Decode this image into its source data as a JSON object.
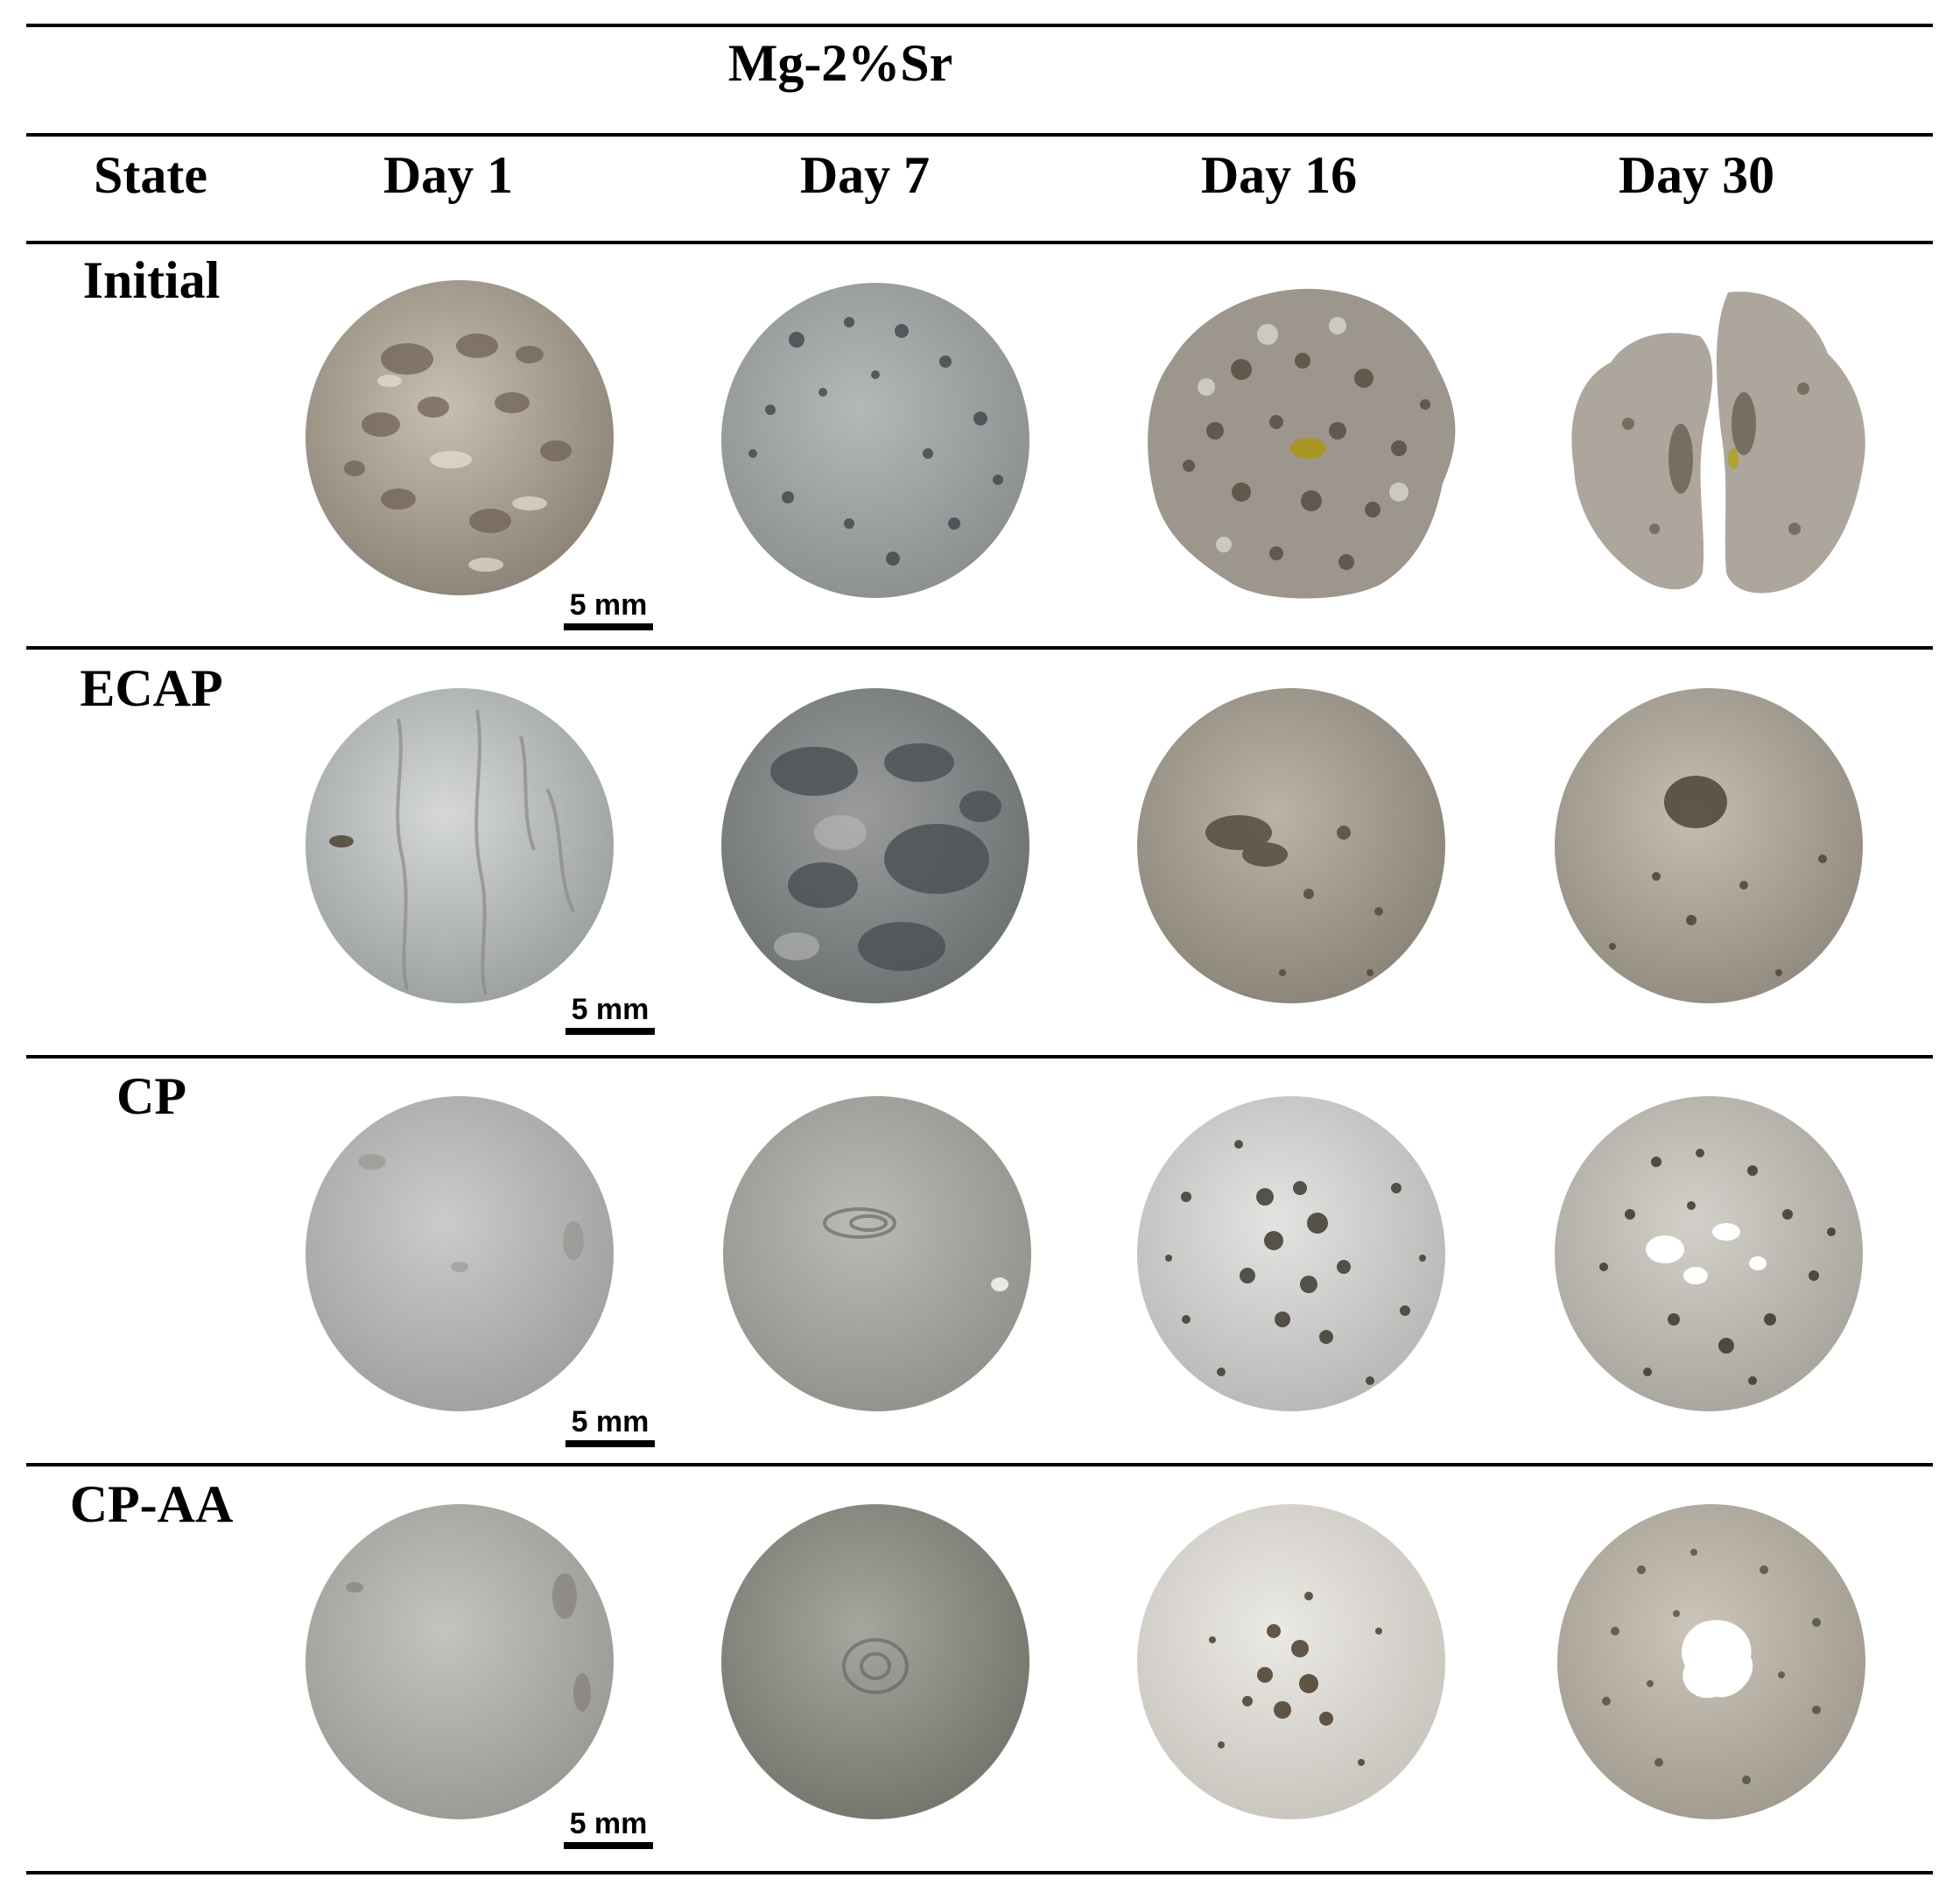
{
  "title": "Mg-2%Sr",
  "header": {
    "state_label": "State",
    "days": [
      "Day 1",
      "Day 7",
      "Day 16",
      "Day 30"
    ]
  },
  "rows": [
    {
      "label": "Initial",
      "scale": "5 mm"
    },
    {
      "label": "ECAP",
      "scale": "5 mm"
    },
    {
      "label": "CP",
      "scale": "5 mm"
    },
    {
      "label": "CP-AA",
      "scale": "5 mm"
    }
  ],
  "sample_colors": {
    "row0": [
      "#a39a8c",
      "#9ea3a1",
      "#9c968c",
      "#ada69c"
    ],
    "row1": [
      "#b9bdbd",
      "#7f8384",
      "#a49e93",
      "#aba59b"
    ],
    "row2": [
      "#b5b8b7",
      "#aaa9a3",
      "#d1d2d0",
      "#c3c1ba"
    ],
    "row3": [
      "#b2b2ad",
      "#8f918a",
      "#dcd9d3",
      "#bcb6ab"
    ]
  }
}
